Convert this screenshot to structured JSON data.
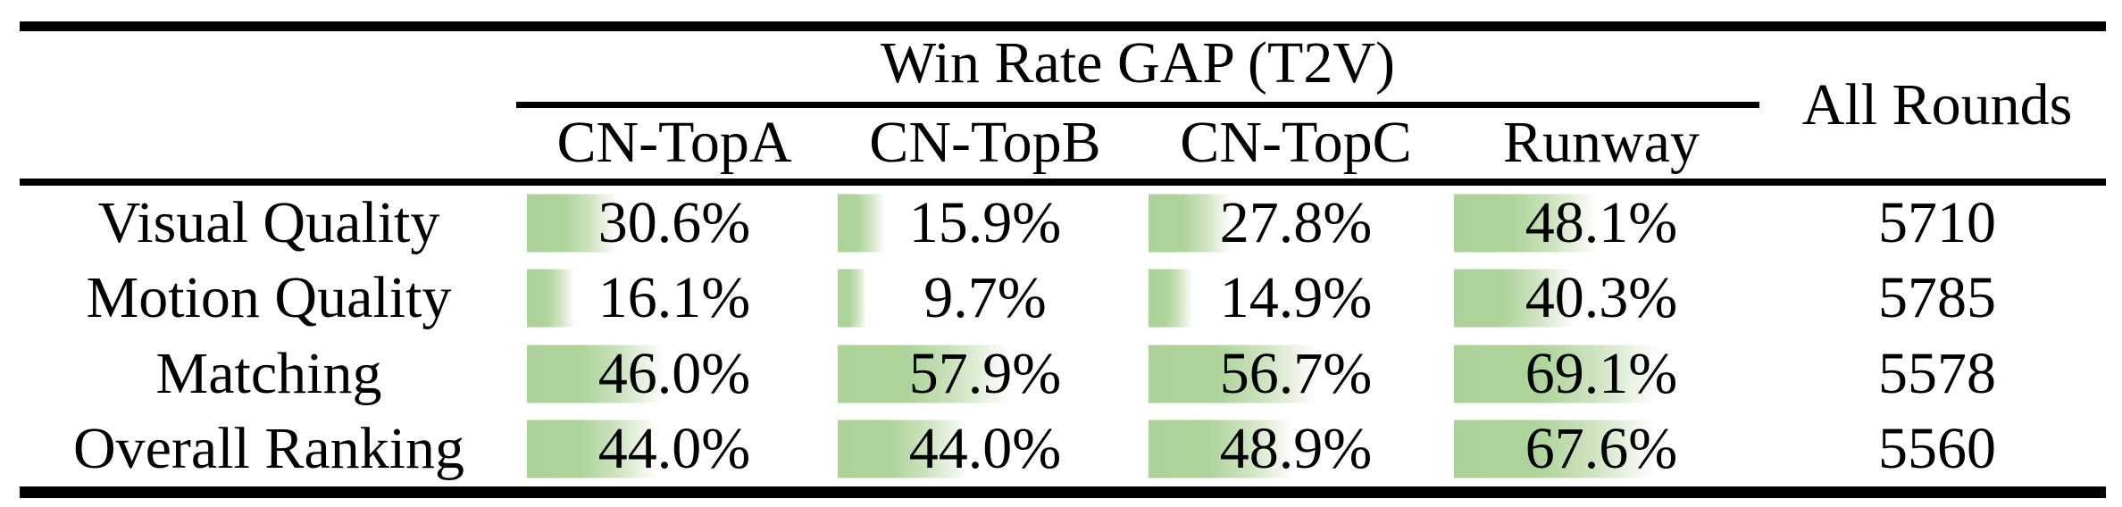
{
  "colors": {
    "bar_green": "#aed49b",
    "rule_black": "#000000",
    "background": "#ffffff"
  },
  "table": {
    "group_header": "Win Rate GAP (T2V)",
    "all_rounds_header": "All Rounds",
    "columns": [
      "CN-TopA",
      "CN-TopB",
      "CN-TopC",
      "Runway"
    ],
    "rows": [
      {
        "label": "Visual Quality",
        "cells": [
          {
            "text": "30.6%",
            "pct": 30.6
          },
          {
            "text": "15.9%",
            "pct": 15.9
          },
          {
            "text": "27.8%",
            "pct": 27.8
          },
          {
            "text": "48.1%",
            "pct": 48.1
          }
        ],
        "all_rounds": "5710"
      },
      {
        "label": "Motion Quality",
        "cells": [
          {
            "text": "16.1%",
            "pct": 16.1
          },
          {
            "text": "9.7%",
            "pct": 9.7
          },
          {
            "text": "14.9%",
            "pct": 14.9
          },
          {
            "text": "40.3%",
            "pct": 40.3
          }
        ],
        "all_rounds": "5785"
      },
      {
        "label": "Matching",
        "cells": [
          {
            "text": "46.0%",
            "pct": 46.0
          },
          {
            "text": "57.9%",
            "pct": 57.9
          },
          {
            "text": "56.7%",
            "pct": 56.7
          },
          {
            "text": "69.1%",
            "pct": 69.1
          }
        ],
        "all_rounds": "5578"
      },
      {
        "label": "Overall Ranking",
        "cells": [
          {
            "text": "44.0%",
            "pct": 44.0
          },
          {
            "text": "44.0%",
            "pct": 44.0
          },
          {
            "text": "48.9%",
            "pct": 48.9
          },
          {
            "text": "67.6%",
            "pct": 67.6
          }
        ],
        "all_rounds": "5560"
      }
    ]
  },
  "chart_data": {
    "type": "table",
    "title": "Win Rate GAP (T2V)",
    "categories": [
      "Visual Quality",
      "Motion Quality",
      "Matching",
      "Overall Ranking"
    ],
    "series": [
      {
        "name": "CN-TopA",
        "values": [
          30.6,
          16.1,
          46.0,
          44.0
        ]
      },
      {
        "name": "CN-TopB",
        "values": [
          15.9,
          9.7,
          57.9,
          44.0
        ]
      },
      {
        "name": "CN-TopC",
        "values": [
          27.8,
          14.9,
          56.7,
          48.9
        ]
      },
      {
        "name": "Runway",
        "values": [
          48.1,
          40.3,
          69.1,
          67.6
        ]
      }
    ],
    "all_rounds": [
      5710,
      5785,
      5578,
      5560
    ],
    "unit": "%",
    "bar_scale_note": "in-cell bars, 100% = full cell width"
  }
}
